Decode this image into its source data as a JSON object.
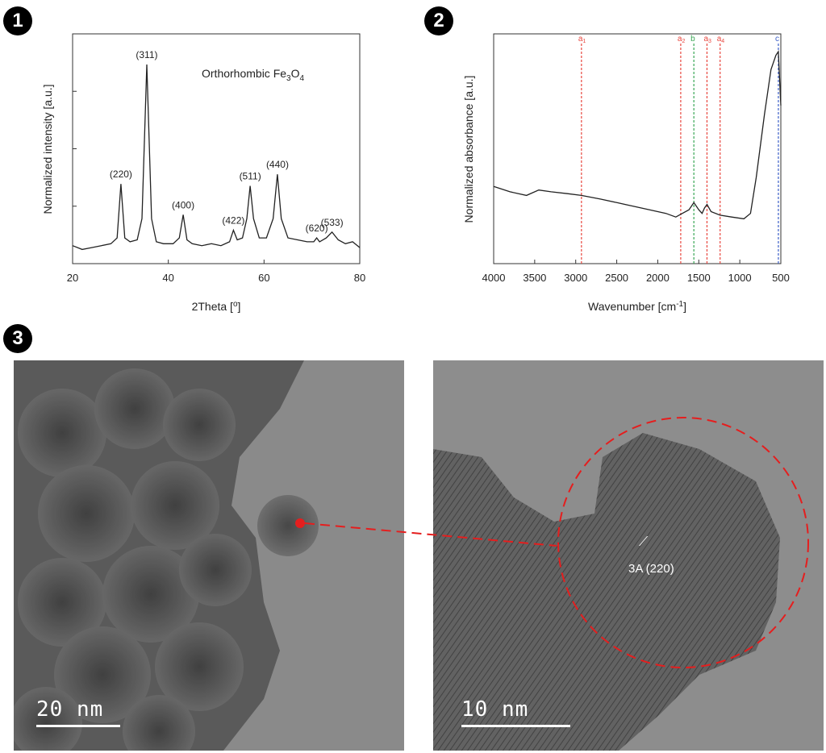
{
  "panels": {
    "p1": {
      "label": "1"
    },
    "p2": {
      "label": "2"
    },
    "p3": {
      "label": "3"
    }
  },
  "chart_data": [
    {
      "type": "line",
      "title": "",
      "annotation": "Orthorhombic Fe3O4",
      "xlabel": "2Theta [o]",
      "ylabel": "Normalized intensity [a.u.]",
      "xlim": [
        20,
        80
      ],
      "xticks": [
        "20",
        "40",
        "60",
        "80"
      ],
      "grid": false,
      "peaks": [
        {
          "label": "(220)",
          "x": 30.1
        },
        {
          "label": "(311)",
          "x": 35.5
        },
        {
          "label": "(400)",
          "x": 43.1
        },
        {
          "label": "(422)",
          "x": 53.6
        },
        {
          "label": "(511)",
          "x": 57.1
        },
        {
          "label": "(440)",
          "x": 62.8
        },
        {
          "label": "(620)",
          "x": 71.0
        },
        {
          "label": "(533)",
          "x": 74.2
        }
      ],
      "series": [
        {
          "values": [
            [
              20,
              0.06
            ],
            [
              22,
              0.04
            ],
            [
              24,
              0.05
            ],
            [
              26,
              0.06
            ],
            [
              28,
              0.07
            ],
            [
              29.3,
              0.1
            ],
            [
              30.1,
              0.38
            ],
            [
              30.9,
              0.1
            ],
            [
              32,
              0.08
            ],
            [
              33.5,
              0.09
            ],
            [
              34.5,
              0.2
            ],
            [
              35.5,
              1.0
            ],
            [
              36.5,
              0.2
            ],
            [
              37.5,
              0.08
            ],
            [
              39,
              0.07
            ],
            [
              41,
              0.07
            ],
            [
              42.3,
              0.1
            ],
            [
              43.1,
              0.22
            ],
            [
              43.9,
              0.09
            ],
            [
              45,
              0.07
            ],
            [
              47,
              0.06
            ],
            [
              49,
              0.07
            ],
            [
              51,
              0.06
            ],
            [
              52.8,
              0.08
            ],
            [
              53.6,
              0.14
            ],
            [
              54.4,
              0.09
            ],
            [
              55.5,
              0.1
            ],
            [
              56.4,
              0.2
            ],
            [
              57.1,
              0.37
            ],
            [
              57.8,
              0.2
            ],
            [
              59,
              0.1
            ],
            [
              60.5,
              0.1
            ],
            [
              61.9,
              0.2
            ],
            [
              62.8,
              0.43
            ],
            [
              63.6,
              0.2
            ],
            [
              65,
              0.1
            ],
            [
              67,
              0.09
            ],
            [
              69,
              0.08
            ],
            [
              70.4,
              0.08
            ],
            [
              71.0,
              0.1
            ],
            [
              71.6,
              0.08
            ],
            [
              73,
              0.1
            ],
            [
              74.2,
              0.13
            ],
            [
              75.5,
              0.09
            ],
            [
              77,
              0.07
            ],
            [
              78.5,
              0.08
            ],
            [
              80,
              0.05
            ]
          ]
        }
      ]
    },
    {
      "type": "line",
      "title": "",
      "xlabel": "Wavenumber [cm-1]",
      "ylabel": "Normalized absorbance [a.u.]",
      "xlim": [
        4000,
        500
      ],
      "xticks": [
        "4000",
        "3500",
        "3000",
        "2500",
        "2000",
        "1500",
        "1000",
        "500"
      ],
      "grid": false,
      "reference_lines": [
        {
          "label": "a1",
          "x": 2930,
          "color": "#e8473f"
        },
        {
          "label": "a2",
          "x": 1720,
          "color": "#e8473f"
        },
        {
          "label": "b",
          "x": 1560,
          "color": "#3aa655"
        },
        {
          "label": "a3",
          "x": 1400,
          "color": "#e8473f"
        },
        {
          "label": "a4",
          "x": 1240,
          "color": "#e8473f"
        },
        {
          "label": "c",
          "x": 530,
          "color": "#3b5ec8"
        }
      ],
      "series": [
        {
          "values": [
            [
              4000,
              0.25
            ],
            [
              3800,
              0.22
            ],
            [
              3600,
              0.2
            ],
            [
              3450,
              0.23
            ],
            [
              3300,
              0.22
            ],
            [
              3100,
              0.21
            ],
            [
              2930,
              0.2
            ],
            [
              2700,
              0.18
            ],
            [
              2500,
              0.16
            ],
            [
              2300,
              0.14
            ],
            [
              2100,
              0.12
            ],
            [
              1900,
              0.1
            ],
            [
              1780,
              0.08
            ],
            [
              1700,
              0.1
            ],
            [
              1620,
              0.12
            ],
            [
              1560,
              0.16
            ],
            [
              1500,
              0.12
            ],
            [
              1460,
              0.1
            ],
            [
              1430,
              0.13
            ],
            [
              1400,
              0.15
            ],
            [
              1350,
              0.11
            ],
            [
              1240,
              0.09
            ],
            [
              1100,
              0.08
            ],
            [
              950,
              0.07
            ],
            [
              870,
              0.1
            ],
            [
              800,
              0.3
            ],
            [
              700,
              0.65
            ],
            [
              620,
              0.9
            ],
            [
              560,
              0.98
            ],
            [
              530,
              1.0
            ],
            [
              500,
              0.7
            ]
          ]
        }
      ]
    }
  ],
  "tem": {
    "left": {
      "scalebar": "20 nm"
    },
    "right": {
      "scalebar": "10 nm",
      "annotation": "3A (220)"
    }
  },
  "colors": {
    "highlight": "#e51e1e"
  }
}
